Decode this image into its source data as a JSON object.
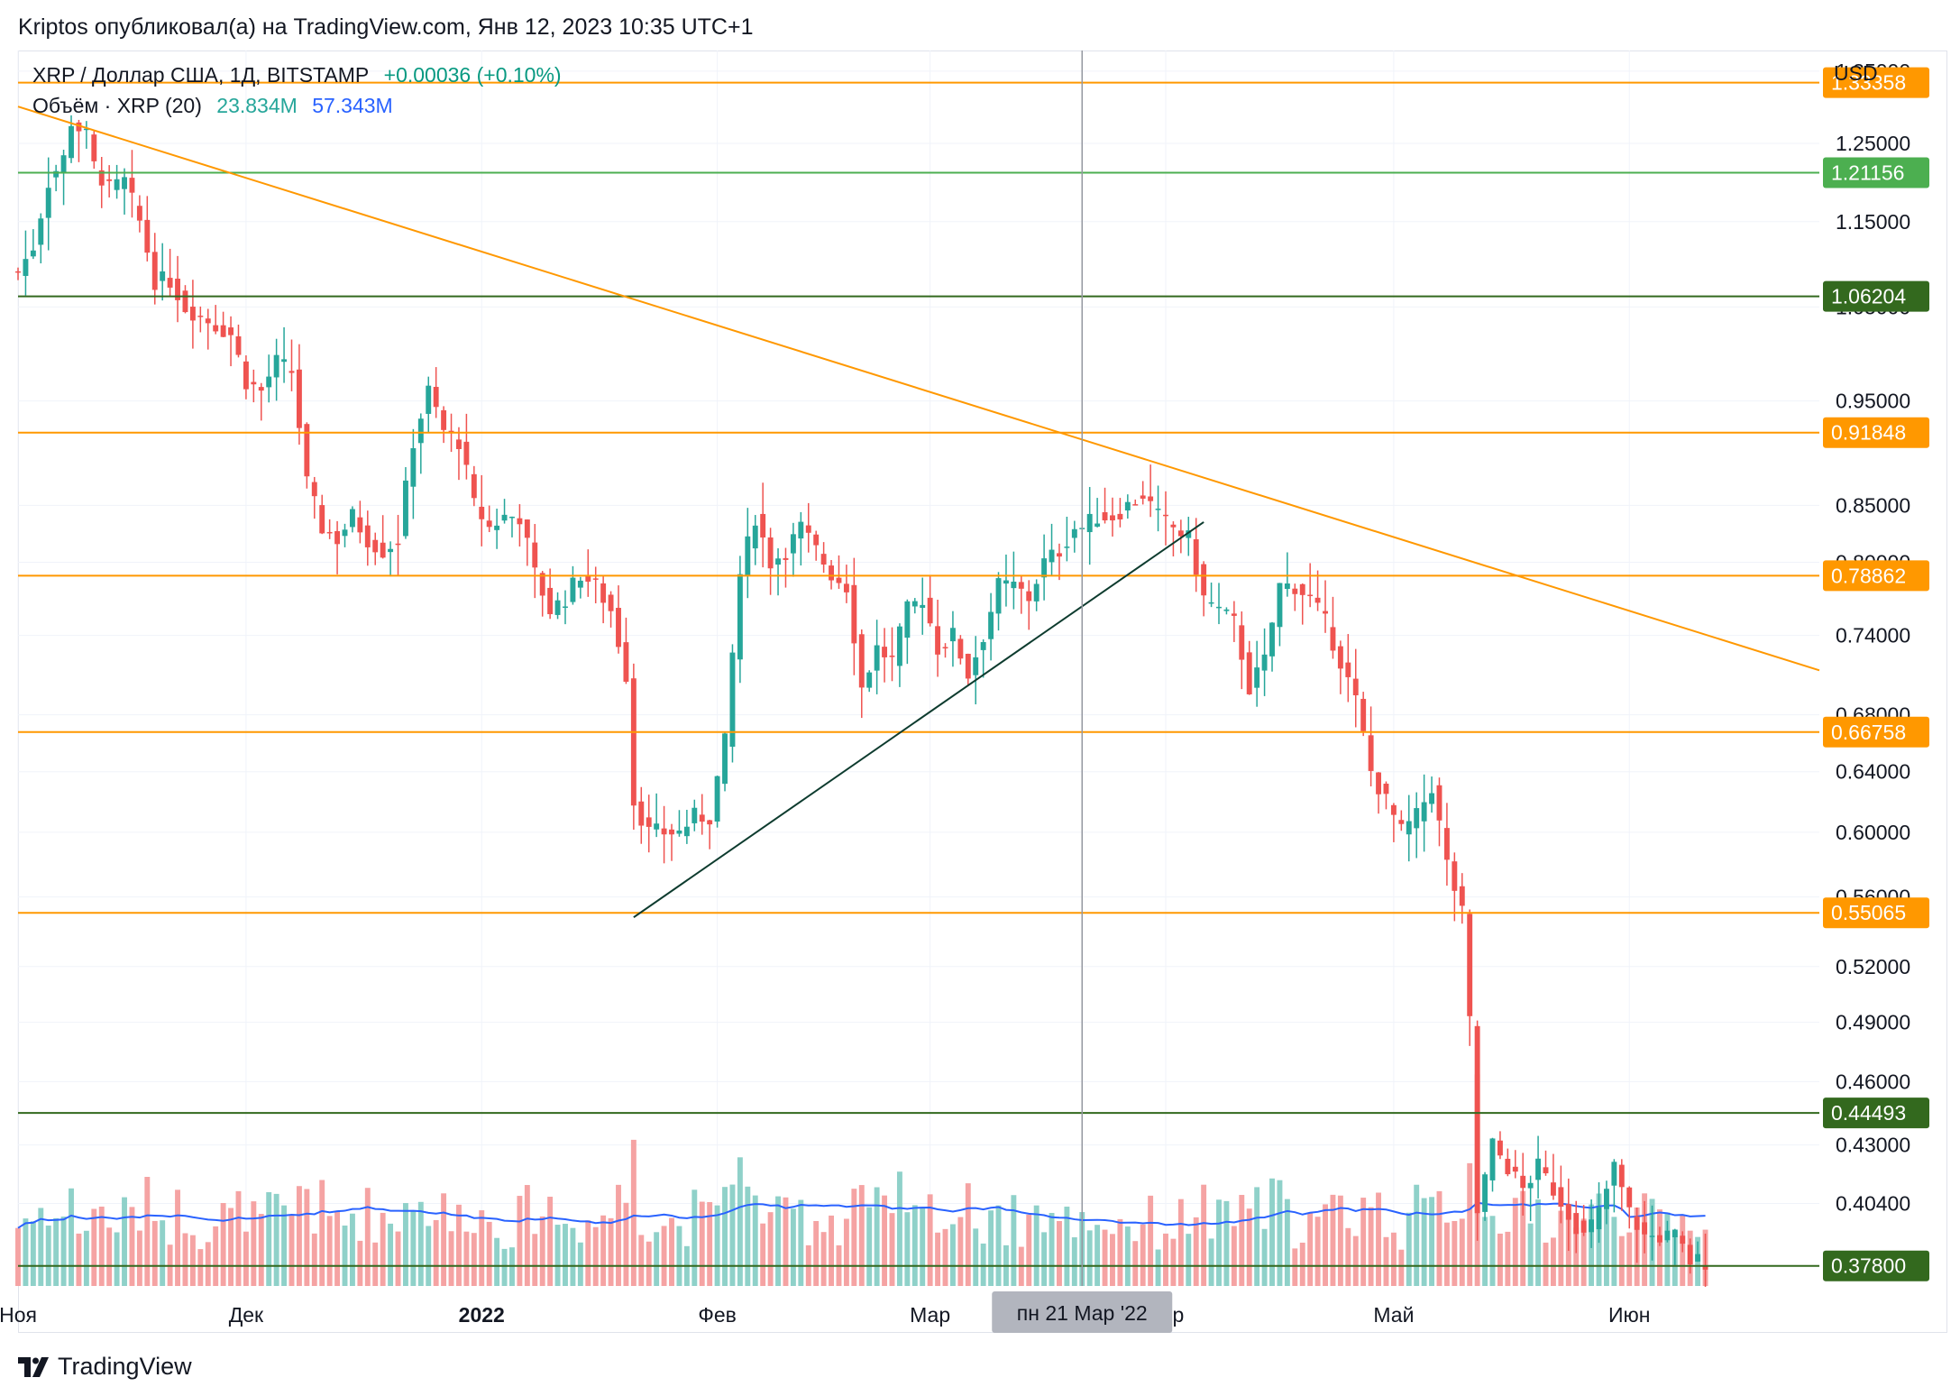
{
  "caption": "Kriptos опубликовал(а) на TradingView.com, Янв 12, 2023 10:35 UTC+1",
  "legend": {
    "symbol": "XRP / Доллар США, 1Д, BITSTAMP",
    "change": "+0.00036 (+0.10%)",
    "volume_label": "Объём · XRP (20)",
    "volume_value": "23.834M",
    "volume_ma": "57.343M"
  },
  "currency": "USD",
  "brand": "TradingView",
  "colors": {
    "up": "#26a69a",
    "down": "#ef5350",
    "volume_up": "#8fd1c9",
    "volume_down": "#f5a3a3",
    "volume_ma": "#2962ff",
    "orange": "#ff9800",
    "green_light": "#4caf50",
    "green_dark": "#33691e",
    "trend": "#ff9800",
    "support": "#0d3b2e"
  },
  "chart_data": {
    "type": "candlestick",
    "symbol": "XRPUSD",
    "timeframe": "1D",
    "x_range": [
      "2021-11-01",
      "2022-06-26"
    ],
    "y_scale": "log",
    "y_range": [
      0.37,
      1.38
    ],
    "price_ticks": [
      "1.35000",
      "1.25000",
      "1.15000",
      "1.05000",
      "0.95000",
      "0.85000",
      "0.80000",
      "0.74000",
      "0.68000",
      "0.64000",
      "0.60000",
      "0.56000",
      "0.52000",
      "0.49000",
      "0.46000",
      "0.43000",
      "0.40400",
      "0.37800"
    ],
    "x_ticks": [
      {
        "date": "2021-11-01",
        "label": "Ноя"
      },
      {
        "date": "2021-12-01",
        "label": "Дек"
      },
      {
        "date": "2022-01-01",
        "label": "2022"
      },
      {
        "date": "2022-02-01",
        "label": "Фев"
      },
      {
        "date": "2022-03-01",
        "label": "Мар"
      },
      {
        "date": "2022-04-01",
        "label": "Апр"
      },
      {
        "date": "2022-05-01",
        "label": "Май"
      },
      {
        "date": "2022-06-01",
        "label": "Июн"
      }
    ],
    "crosshair": {
      "date": "2022-03-21",
      "label": "пн 21 Мар '22"
    },
    "horizontal_levels": [
      {
        "value": 1.33358,
        "label": "1.33358",
        "color": "#ff9800"
      },
      {
        "value": 1.21156,
        "label": "1.21156",
        "color": "#4caf50"
      },
      {
        "value": 1.06204,
        "label": "1.06204",
        "color": "#33691e"
      },
      {
        "value": 0.91848,
        "label": "0.91848",
        "color": "#ff9800"
      },
      {
        "value": 0.78862,
        "label": "0.78862",
        "color": "#ff9800"
      },
      {
        "value": 0.66758,
        "label": "0.66758",
        "color": "#ff9800"
      },
      {
        "value": 0.55065,
        "label": "0.55065",
        "color": "#ff9800"
      },
      {
        "value": 0.44493,
        "label": "0.44493",
        "color": "#33691e"
      },
      {
        "value": 0.378,
        "label": "0.37800",
        "color": "#33691e"
      }
    ],
    "trend_lines": [
      {
        "from": [
          "2021-11-01",
          1.3
        ],
        "to": [
          "2022-06-26",
          0.713
        ],
        "color": "#ff9800"
      },
      {
        "from": [
          "2022-01-21",
          0.548
        ],
        "to": [
          "2022-04-06",
          0.835
        ],
        "color": "#0d3b2e"
      }
    ],
    "series": [
      {
        "d": "2021-11-01",
        "c": 1.09
      },
      {
        "d": "2021-11-03",
        "c": 1.12
      },
      {
        "d": "2021-11-05",
        "c": 1.2
      },
      {
        "d": "2021-11-07",
        "c": 1.23
      },
      {
        "d": "2021-11-08",
        "c": 1.28
      },
      {
        "d": "2021-11-10",
        "c": 1.26
      },
      {
        "d": "2021-11-11",
        "c": 1.22
      },
      {
        "d": "2021-11-13",
        "c": 1.19
      },
      {
        "d": "2021-11-15",
        "c": 1.2
      },
      {
        "d": "2021-11-17",
        "c": 1.15
      },
      {
        "d": "2021-11-19",
        "c": 1.08
      },
      {
        "d": "2021-11-21",
        "c": 1.08
      },
      {
        "d": "2021-11-23",
        "c": 1.05
      },
      {
        "d": "2021-11-25",
        "c": 1.04
      },
      {
        "d": "2021-11-27",
        "c": 1.03
      },
      {
        "d": "2021-11-29",
        "c": 1.02
      },
      {
        "d": "2021-12-01",
        "c": 0.97
      },
      {
        "d": "2021-12-03",
        "c": 0.96
      },
      {
        "d": "2021-12-05",
        "c": 0.99
      },
      {
        "d": "2021-12-07",
        "c": 0.98
      },
      {
        "d": "2021-12-09",
        "c": 0.87
      },
      {
        "d": "2021-12-11",
        "c": 0.83
      },
      {
        "d": "2021-12-13",
        "c": 0.82
      },
      {
        "d": "2021-12-15",
        "c": 0.84
      },
      {
        "d": "2021-12-17",
        "c": 0.82
      },
      {
        "d": "2021-12-19",
        "c": 0.81
      },
      {
        "d": "2021-12-21",
        "c": 0.82
      },
      {
        "d": "2021-12-23",
        "c": 0.91
      },
      {
        "d": "2021-12-25",
        "c": 0.96
      },
      {
        "d": "2021-12-27",
        "c": 0.92
      },
      {
        "d": "2021-12-29",
        "c": 0.91
      },
      {
        "d": "2021-12-31",
        "c": 0.85
      },
      {
        "d": "2022-01-02",
        "c": 0.83
      },
      {
        "d": "2022-01-04",
        "c": 0.84
      },
      {
        "d": "2022-01-06",
        "c": 0.84
      },
      {
        "d": "2022-01-08",
        "c": 0.79
      },
      {
        "d": "2022-01-10",
        "c": 0.76
      },
      {
        "d": "2022-01-12",
        "c": 0.77
      },
      {
        "d": "2022-01-14",
        "c": 0.79
      },
      {
        "d": "2022-01-16",
        "c": 0.78
      },
      {
        "d": "2022-01-18",
        "c": 0.76
      },
      {
        "d": "2022-01-20",
        "c": 0.71
      },
      {
        "d": "2022-01-21",
        "c": 0.62
      },
      {
        "d": "2022-01-23",
        "c": 0.6
      },
      {
        "d": "2022-01-25",
        "c": 0.6
      },
      {
        "d": "2022-01-27",
        "c": 0.6
      },
      {
        "d": "2022-01-29",
        "c": 0.61
      },
      {
        "d": "2022-01-31",
        "c": 0.61
      },
      {
        "d": "2022-02-02",
        "c": 0.66
      },
      {
        "d": "2022-02-04",
        "c": 0.79
      },
      {
        "d": "2022-02-06",
        "c": 0.84
      },
      {
        "d": "2022-02-08",
        "c": 0.8
      },
      {
        "d": "2022-02-10",
        "c": 0.81
      },
      {
        "d": "2022-02-12",
        "c": 0.83
      },
      {
        "d": "2022-02-14",
        "c": 0.81
      },
      {
        "d": "2022-02-16",
        "c": 0.79
      },
      {
        "d": "2022-02-18",
        "c": 0.78
      },
      {
        "d": "2022-02-20",
        "c": 0.7
      },
      {
        "d": "2022-02-22",
        "c": 0.73
      },
      {
        "d": "2022-02-24",
        "c": 0.72
      },
      {
        "d": "2022-02-26",
        "c": 0.76
      },
      {
        "d": "2022-02-28",
        "c": 0.77
      },
      {
        "d": "2022-03-02",
        "c": 0.73
      },
      {
        "d": "2022-03-04",
        "c": 0.74
      },
      {
        "d": "2022-03-06",
        "c": 0.71
      },
      {
        "d": "2022-03-08",
        "c": 0.74
      },
      {
        "d": "2022-03-10",
        "c": 0.78
      },
      {
        "d": "2022-03-12",
        "c": 0.78
      },
      {
        "d": "2022-03-14",
        "c": 0.77
      },
      {
        "d": "2022-03-16",
        "c": 0.8
      },
      {
        "d": "2022-03-18",
        "c": 0.81
      },
      {
        "d": "2022-03-20",
        "c": 0.83
      },
      {
        "d": "2022-03-21",
        "c": 0.83
      },
      {
        "d": "2022-03-23",
        "c": 0.84
      },
      {
        "d": "2022-03-25",
        "c": 0.84
      },
      {
        "d": "2022-03-27",
        "c": 0.85
      },
      {
        "d": "2022-03-29",
        "c": 0.86
      },
      {
        "d": "2022-03-31",
        "c": 0.84
      },
      {
        "d": "2022-04-02",
        "c": 0.83
      },
      {
        "d": "2022-04-04",
        "c": 0.82
      },
      {
        "d": "2022-04-06",
        "c": 0.77
      },
      {
        "d": "2022-04-08",
        "c": 0.76
      },
      {
        "d": "2022-04-10",
        "c": 0.75
      },
      {
        "d": "2022-04-12",
        "c": 0.7
      },
      {
        "d": "2022-04-14",
        "c": 0.72
      },
      {
        "d": "2022-04-16",
        "c": 0.78
      },
      {
        "d": "2022-04-18",
        "c": 0.78
      },
      {
        "d": "2022-04-20",
        "c": 0.77
      },
      {
        "d": "2022-04-22",
        "c": 0.75
      },
      {
        "d": "2022-04-24",
        "c": 0.72
      },
      {
        "d": "2022-04-26",
        "c": 0.69
      },
      {
        "d": "2022-04-28",
        "c": 0.64
      },
      {
        "d": "2022-04-30",
        "c": 0.62
      },
      {
        "d": "2022-05-02",
        "c": 0.6
      },
      {
        "d": "2022-05-04",
        "c": 0.61
      },
      {
        "d": "2022-05-06",
        "c": 0.63
      },
      {
        "d": "2022-05-08",
        "c": 0.58
      },
      {
        "d": "2022-05-10",
        "c": 0.55
      },
      {
        "d": "2022-05-11",
        "c": 0.49
      },
      {
        "d": "2022-05-12",
        "c": 0.4
      },
      {
        "d": "2022-05-14",
        "c": 0.43
      },
      {
        "d": "2022-05-16",
        "c": 0.42
      },
      {
        "d": "2022-05-18",
        "c": 0.41
      },
      {
        "d": "2022-05-20",
        "c": 0.42
      },
      {
        "d": "2022-05-22",
        "c": 0.41
      },
      {
        "d": "2022-05-24",
        "c": 0.4
      },
      {
        "d": "2022-05-26",
        "c": 0.39
      },
      {
        "d": "2022-05-28",
        "c": 0.4
      },
      {
        "d": "2022-05-30",
        "c": 0.42
      },
      {
        "d": "2022-06-01",
        "c": 0.4
      },
      {
        "d": "2022-06-03",
        "c": 0.39
      },
      {
        "d": "2022-06-05",
        "c": 0.39
      },
      {
        "d": "2022-06-07",
        "c": 0.39
      },
      {
        "d": "2022-06-09",
        "c": 0.38
      },
      {
        "d": "2022-06-11",
        "c": 0.38
      }
    ]
  }
}
